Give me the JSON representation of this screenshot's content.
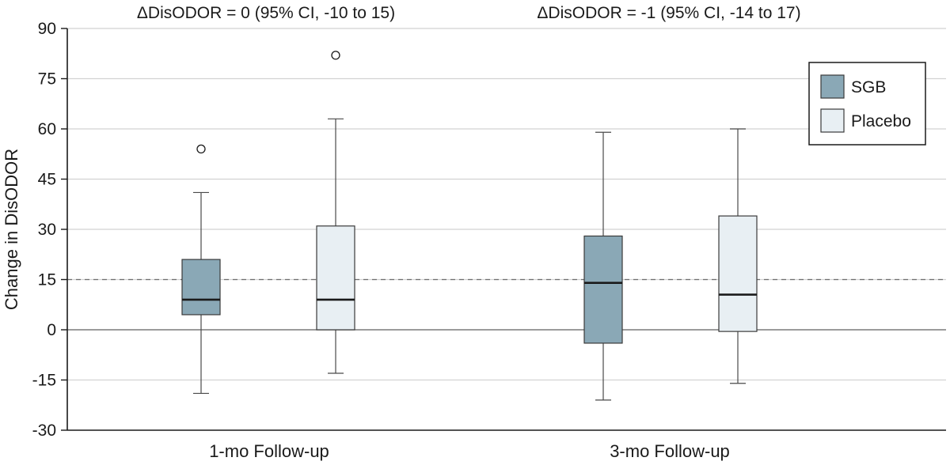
{
  "chart_data": {
    "type": "box",
    "ylabel": "Change in DisODOR",
    "ylim": [
      -30,
      90
    ],
    "y_ticks": [
      90,
      75,
      60,
      45,
      30,
      15,
      0,
      -15,
      -30
    ],
    "y_tick_labels": [
      "90",
      "75",
      "60",
      "45",
      "30",
      "15",
      "0",
      "-15",
      "-30"
    ],
    "reference_line": 15,
    "grid": true,
    "legend_placement": "top-right",
    "categories": [
      "1-mo Follow-up",
      "3-mo Follow-up"
    ],
    "group_annotations": [
      "ΔDisODOR = 0 (95% CI, -10 to 15)",
      "ΔDisODOR = -1 (95% CI, -14 to 17)"
    ],
    "series": [
      {
        "name": "SGB",
        "color": "#8aa8b6",
        "boxes": [
          {
            "min": -19,
            "q1": 4.5,
            "median": 9,
            "q3": 21,
            "max": 41,
            "outliers": [
              54
            ]
          },
          {
            "min": -21,
            "q1": -4,
            "median": 14,
            "q3": 28,
            "max": 59,
            "outliers": []
          }
        ]
      },
      {
        "name": "Placebo",
        "color": "#e8eff3",
        "boxes": [
          {
            "min": -13,
            "q1": 0,
            "median": 9,
            "q3": 31,
            "max": 63,
            "outliers": [
              82
            ]
          },
          {
            "min": -16,
            "q1": -0.5,
            "median": 10.5,
            "q3": 34,
            "max": 60,
            "outliers": []
          }
        ]
      }
    ]
  }
}
